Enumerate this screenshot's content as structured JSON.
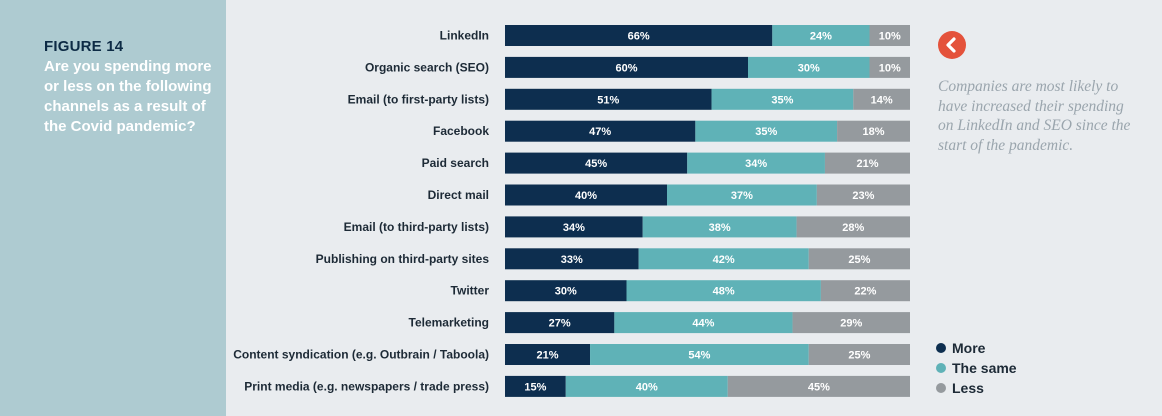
{
  "sidebar": {
    "figure_label": "FIGURE 14",
    "question": "Are you spending more or less on the following channels as a result of the Covid pandemic?"
  },
  "annotation": {
    "text": "Companies are most likely to have increased their spending on LinkedIn and SEO since the start of the pandemic.",
    "button_icon": "chevron-left-icon"
  },
  "colors": {
    "more": "#0d2e4f",
    "same": "#5fb2b7",
    "less": "#959a9e",
    "accent": "#e4523b",
    "sidebar_bg": "#aecbd1"
  },
  "legend": [
    {
      "key": "more",
      "label": "More"
    },
    {
      "key": "same",
      "label": "The same"
    },
    {
      "key": "less",
      "label": "Less"
    }
  ],
  "chart_data": {
    "type": "bar",
    "orientation": "horizontal",
    "stacked": true,
    "normalized_percent": true,
    "title": "",
    "xlabel": "",
    "ylabel": "",
    "xlim": [
      0,
      100
    ],
    "grid": false,
    "legend_position": "bottom-right",
    "categories": [
      "LinkedIn",
      "Organic search (SEO)",
      "Email (to first-party lists)",
      "Facebook",
      "Paid search",
      "Direct mail",
      "Email (to third-party lists)",
      "Publishing on third-party sites",
      "Twitter",
      "Telemarketing",
      "Content syndication (e.g. Outbrain / Taboola)",
      "Print media (e.g. newspapers / trade press)"
    ],
    "series": [
      {
        "name": "More",
        "values": [
          66,
          60,
          51,
          47,
          45,
          40,
          34,
          33,
          30,
          27,
          21,
          15
        ]
      },
      {
        "name": "The same",
        "values": [
          24,
          30,
          35,
          35,
          34,
          37,
          38,
          42,
          48,
          44,
          54,
          40
        ]
      },
      {
        "name": "Less",
        "values": [
          10,
          10,
          14,
          18,
          21,
          23,
          28,
          25,
          22,
          29,
          25,
          45
        ]
      }
    ]
  }
}
